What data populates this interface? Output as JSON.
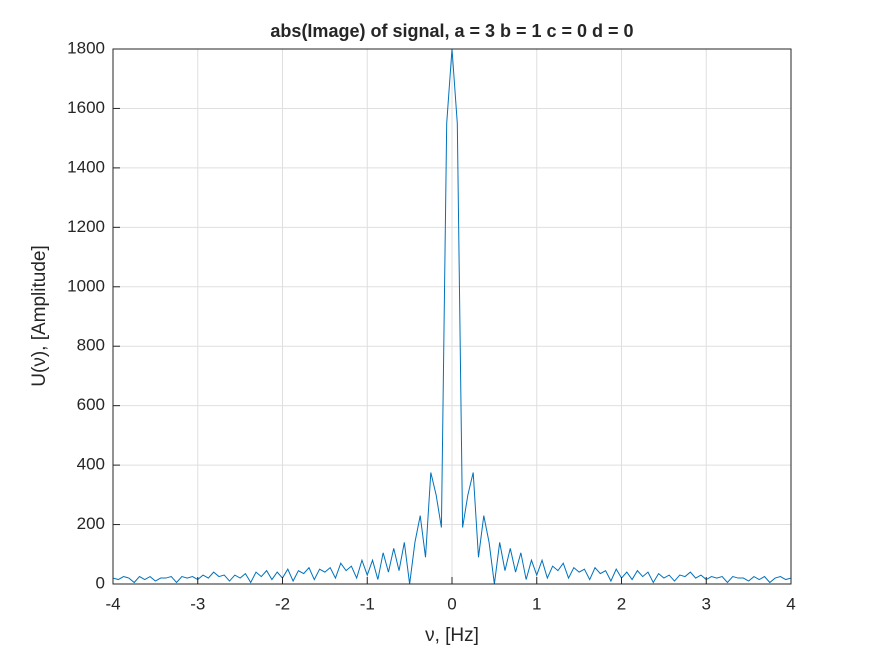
{
  "chart_data": {
    "type": "line",
    "title": "abs(Image) of signal, a = 3 b = 1 c = 0 d = 0",
    "xlabel": "ν, [Hz]",
    "ylabel": "U(ν), [Amplitude]",
    "color": "#0072bd",
    "grid": true,
    "xlim": [
      -4,
      4
    ],
    "ylim": [
      0,
      1800
    ],
    "xticks": [
      -4,
      -3,
      -2,
      -1,
      0,
      1,
      2,
      3,
      4
    ],
    "yticks": [
      0,
      200,
      400,
      600,
      800,
      1000,
      1200,
      1400,
      1600,
      1800
    ],
    "x": [
      -4,
      -3.9375,
      -3.875,
      -3.8125,
      -3.75,
      -3.6875,
      -3.625,
      -3.5625,
      -3.5,
      -3.4375,
      -3.375,
      -3.3125,
      -3.25,
      -3.1875,
      -3.125,
      -3.0625,
      -3,
      -2.9375,
      -2.875,
      -2.8125,
      -2.75,
      -2.6875,
      -2.625,
      -2.5625,
      -2.5,
      -2.4375,
      -2.375,
      -2.3125,
      -2.25,
      -2.1875,
      -2.125,
      -2.0625,
      -2,
      -1.9375,
      -1.875,
      -1.8125,
      -1.75,
      -1.6875,
      -1.625,
      -1.5625,
      -1.5,
      -1.4375,
      -1.375,
      -1.3125,
      -1.25,
      -1.1875,
      -1.125,
      -1.0625,
      -1,
      -0.9375,
      -0.875,
      -0.8125,
      -0.75,
      -0.6875,
      -0.625,
      -0.5625,
      -0.5,
      -0.4375,
      -0.375,
      -0.3125,
      -0.25,
      -0.1875,
      -0.125,
      -0.0625,
      0,
      0.0625,
      0.125,
      0.1875,
      0.25,
      0.3125,
      0.375,
      0.4375,
      0.5,
      0.5625,
      0.625,
      0.6875,
      0.75,
      0.8125,
      0.875,
      0.9375,
      1,
      1.0625,
      1.125,
      1.1875,
      1.25,
      1.3125,
      1.375,
      1.4375,
      1.5,
      1.5625,
      1.625,
      1.6875,
      1.75,
      1.8125,
      1.875,
      1.9375,
      2,
      2.0625,
      2.125,
      2.1875,
      2.25,
      2.3125,
      2.375,
      2.4375,
      2.5,
      2.5625,
      2.625,
      2.6875,
      2.75,
      2.8125,
      2.875,
      2.9375,
      3,
      3.0625,
      3.125,
      3.1875,
      3.25,
      3.3125,
      3.375,
      3.4375,
      3.5,
      3.5625,
      3.625,
      3.6875,
      3.75,
      3.8125,
      3.875,
      3.9375,
      4
    ],
    "values": [
      20,
      15,
      25,
      20,
      5,
      25,
      15,
      25,
      10,
      20,
      20,
      25,
      5,
      25,
      20,
      25,
      15,
      30,
      20,
      40,
      25,
      30,
      10,
      30,
      20,
      35,
      5,
      40,
      25,
      45,
      15,
      40,
      20,
      50,
      10,
      45,
      35,
      55,
      15,
      50,
      40,
      55,
      20,
      70,
      45,
      60,
      20,
      80,
      30,
      80,
      15,
      105,
      40,
      120,
      45,
      140,
      0,
      140,
      230,
      90,
      375,
      300,
      190,
      1550,
      1800,
      1550,
      190,
      300,
      375,
      90,
      230,
      140,
      0,
      140,
      45,
      120,
      40,
      105,
      15,
      80,
      30,
      80,
      20,
      60,
      45,
      70,
      20,
      55,
      40,
      50,
      15,
      55,
      35,
      45,
      10,
      50,
      20,
      40,
      15,
      45,
      25,
      40,
      5,
      35,
      20,
      30,
      10,
      30,
      25,
      40,
      20,
      30,
      15,
      25,
      20,
      25,
      5,
      25,
      20,
      20,
      10,
      25,
      15,
      25,
      5,
      20,
      25,
      15,
      20
    ]
  }
}
